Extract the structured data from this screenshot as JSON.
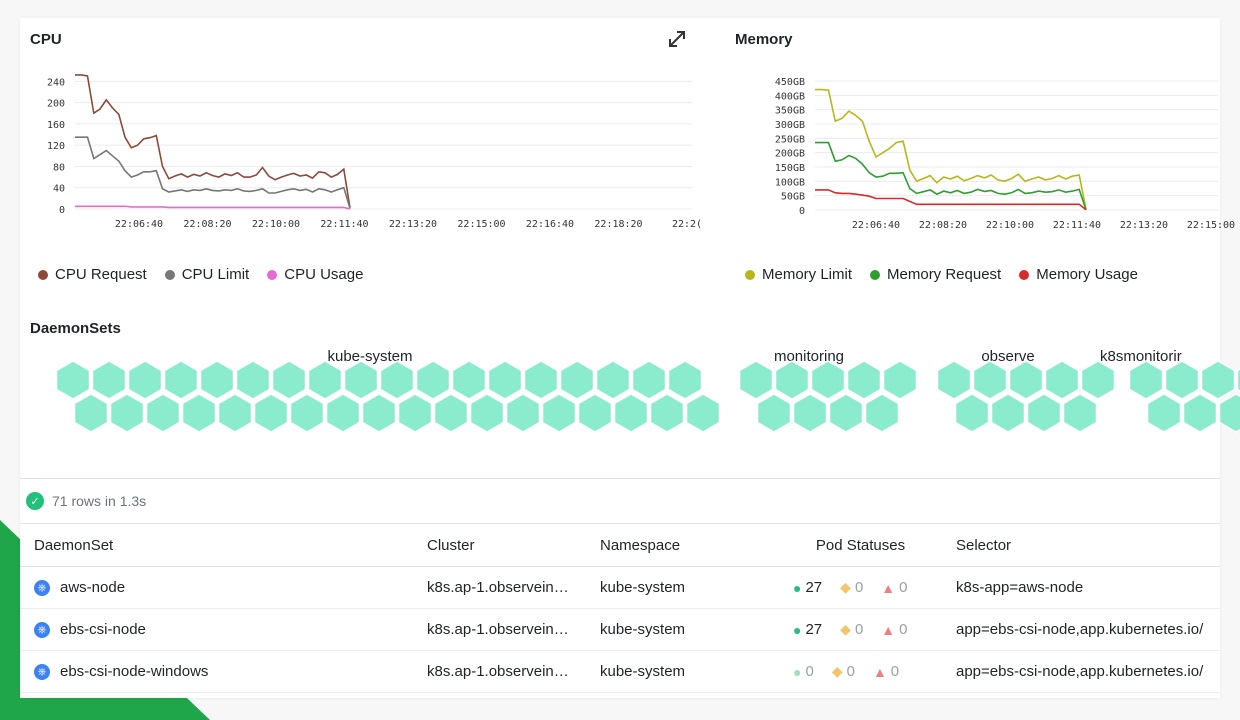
{
  "colors": {
    "hex": "#8aebcd",
    "ok": "#22c07a",
    "warn": "#f4b942",
    "err": "#ef4444"
  },
  "cpu": {
    "title": "CPU",
    "expand_icon": "expand-icon",
    "legend": [
      {
        "label": "CPU Request",
        "color": "#8b4a3c"
      },
      {
        "label": "CPU Limit",
        "color": "#777777"
      },
      {
        "label": "CPU Usage",
        "color": "#e56bd2"
      }
    ]
  },
  "memory": {
    "title": "Memory",
    "legend": [
      {
        "label": "Memory Limit",
        "color": "#b7b71c"
      },
      {
        "label": "Memory Request",
        "color": "#2e9e2e"
      },
      {
        "label": "Memory Usage",
        "color": "#d62b2b"
      }
    ]
  },
  "chart_data": [
    {
      "type": "line",
      "title": "CPU",
      "x_ticks": [
        "22:06:40",
        "22:08:20",
        "22:10:00",
        "22:11:40",
        "22:13:20",
        "22:15:00",
        "22:16:40",
        "22:18:20",
        "22:2("
      ],
      "y_ticks": [
        "0",
        "40",
        "80",
        "120",
        "160",
        "200",
        "240"
      ],
      "ylim": [
        0,
        250
      ],
      "series": [
        {
          "name": "CPU Request",
          "color": "#8b4a3c",
          "values": [
            252,
            252,
            250,
            180,
            188,
            205,
            190,
            178,
            135,
            115,
            120,
            132,
            134,
            138,
            80,
            57,
            62,
            66,
            60,
            65,
            62,
            68,
            63,
            60,
            66,
            63,
            68,
            60,
            60,
            64,
            78,
            62,
            55,
            60,
            64,
            67,
            62,
            64,
            58,
            70,
            68,
            60,
            65,
            75,
            2
          ]
        },
        {
          "name": "CPU Limit",
          "color": "#777777",
          "values": [
            135,
            135,
            135,
            95,
            102,
            110,
            100,
            90,
            72,
            60,
            64,
            70,
            70,
            72,
            38,
            32,
            34,
            36,
            33,
            36,
            35,
            38,
            35,
            34,
            36,
            35,
            38,
            34,
            33,
            35,
            38,
            30,
            30,
            33,
            36,
            38,
            35,
            37,
            32,
            38,
            36,
            32,
            36,
            40,
            1
          ]
        },
        {
          "name": "CPU Usage",
          "color": "#e56bd2",
          "values": [
            5,
            5,
            5,
            5,
            5,
            5,
            5,
            5,
            5,
            4,
            4,
            4,
            4,
            4,
            4,
            3,
            3,
            3,
            3,
            3,
            3,
            3,
            3,
            3,
            3,
            3,
            3,
            3,
            3,
            3,
            3,
            3,
            3,
            3,
            3,
            3,
            3,
            3,
            3,
            3,
            3,
            3,
            3,
            3,
            0
          ]
        }
      ]
    },
    {
      "type": "line",
      "title": "Memory",
      "x_ticks": [
        "22:06:40",
        "22:08:20",
        "22:10:00",
        "22:11:40",
        "22:13:20",
        "22:15:00"
      ],
      "y_ticks": [
        "0",
        "50GB",
        "100GB",
        "150GB",
        "200GB",
        "250GB",
        "300GB",
        "350GB",
        "400GB",
        "450GB"
      ],
      "ylim": [
        0,
        450
      ],
      "series": [
        {
          "name": "Memory Limit",
          "color": "#b7b71c",
          "values": [
            420,
            420,
            418,
            310,
            320,
            345,
            330,
            310,
            240,
            185,
            200,
            215,
            235,
            240,
            140,
            100,
            110,
            120,
            95,
            115,
            108,
            118,
            102,
            110,
            120,
            112,
            122,
            105,
            100,
            110,
            125,
            100,
            108,
            115,
            105,
            110,
            120,
            108,
            118,
            122,
            2
          ]
        },
        {
          "name": "Memory Request",
          "color": "#2e9e2e",
          "values": [
            235,
            235,
            235,
            170,
            175,
            190,
            180,
            160,
            130,
            115,
            118,
            128,
            128,
            130,
            75,
            58,
            64,
            70,
            55,
            66,
            60,
            68,
            58,
            62,
            72,
            65,
            68,
            58,
            55,
            60,
            72,
            58,
            60,
            66,
            62,
            64,
            70,
            62,
            66,
            72,
            1
          ]
        },
        {
          "name": "Memory Usage",
          "color": "#d62b2b",
          "values": [
            70,
            70,
            70,
            60,
            58,
            58,
            55,
            52,
            48,
            40,
            40,
            40,
            40,
            40,
            30,
            20,
            20,
            20,
            20,
            20,
            20,
            20,
            20,
            20,
            20,
            20,
            20,
            20,
            20,
            20,
            20,
            20,
            20,
            20,
            20,
            20,
            20,
            20,
            20,
            20,
            1
          ]
        }
      ]
    }
  ],
  "daemonsets_section": {
    "title": "DaemonSets",
    "groups": [
      {
        "name": "kube-system",
        "rows": [
          18,
          18
        ]
      },
      {
        "name": "monitoring",
        "rows": [
          5,
          4
        ]
      },
      {
        "name": "observe",
        "rows": [
          5,
          4
        ]
      },
      {
        "name": "k8smonitorir",
        "rows": [
          4,
          4
        ]
      }
    ]
  },
  "results": {
    "status_text": "71 rows in 1.3s"
  },
  "table": {
    "headers": [
      "DaemonSet",
      "Cluster",
      "Namespace",
      "Pod Statuses",
      "Selector"
    ],
    "rows": [
      {
        "name": "aws-node",
        "cluster": "k8s.ap-1.observein…",
        "namespace": "kube-system",
        "ok": "27",
        "warn": "0",
        "err": "0",
        "ok_active": true,
        "selector": "k8s-app=aws-node"
      },
      {
        "name": "ebs-csi-node",
        "cluster": "k8s.ap-1.observein…",
        "namespace": "kube-system",
        "ok": "27",
        "warn": "0",
        "err": "0",
        "ok_active": true,
        "selector": "app=ebs-csi-node,app.kubernetes.io/"
      },
      {
        "name": "ebs-csi-node-windows",
        "cluster": "k8s.ap-1.observein…",
        "namespace": "kube-system",
        "ok": "0",
        "warn": "0",
        "err": "0",
        "ok_active": false,
        "selector": "app=ebs-csi-node,app.kubernetes.io/"
      }
    ]
  }
}
